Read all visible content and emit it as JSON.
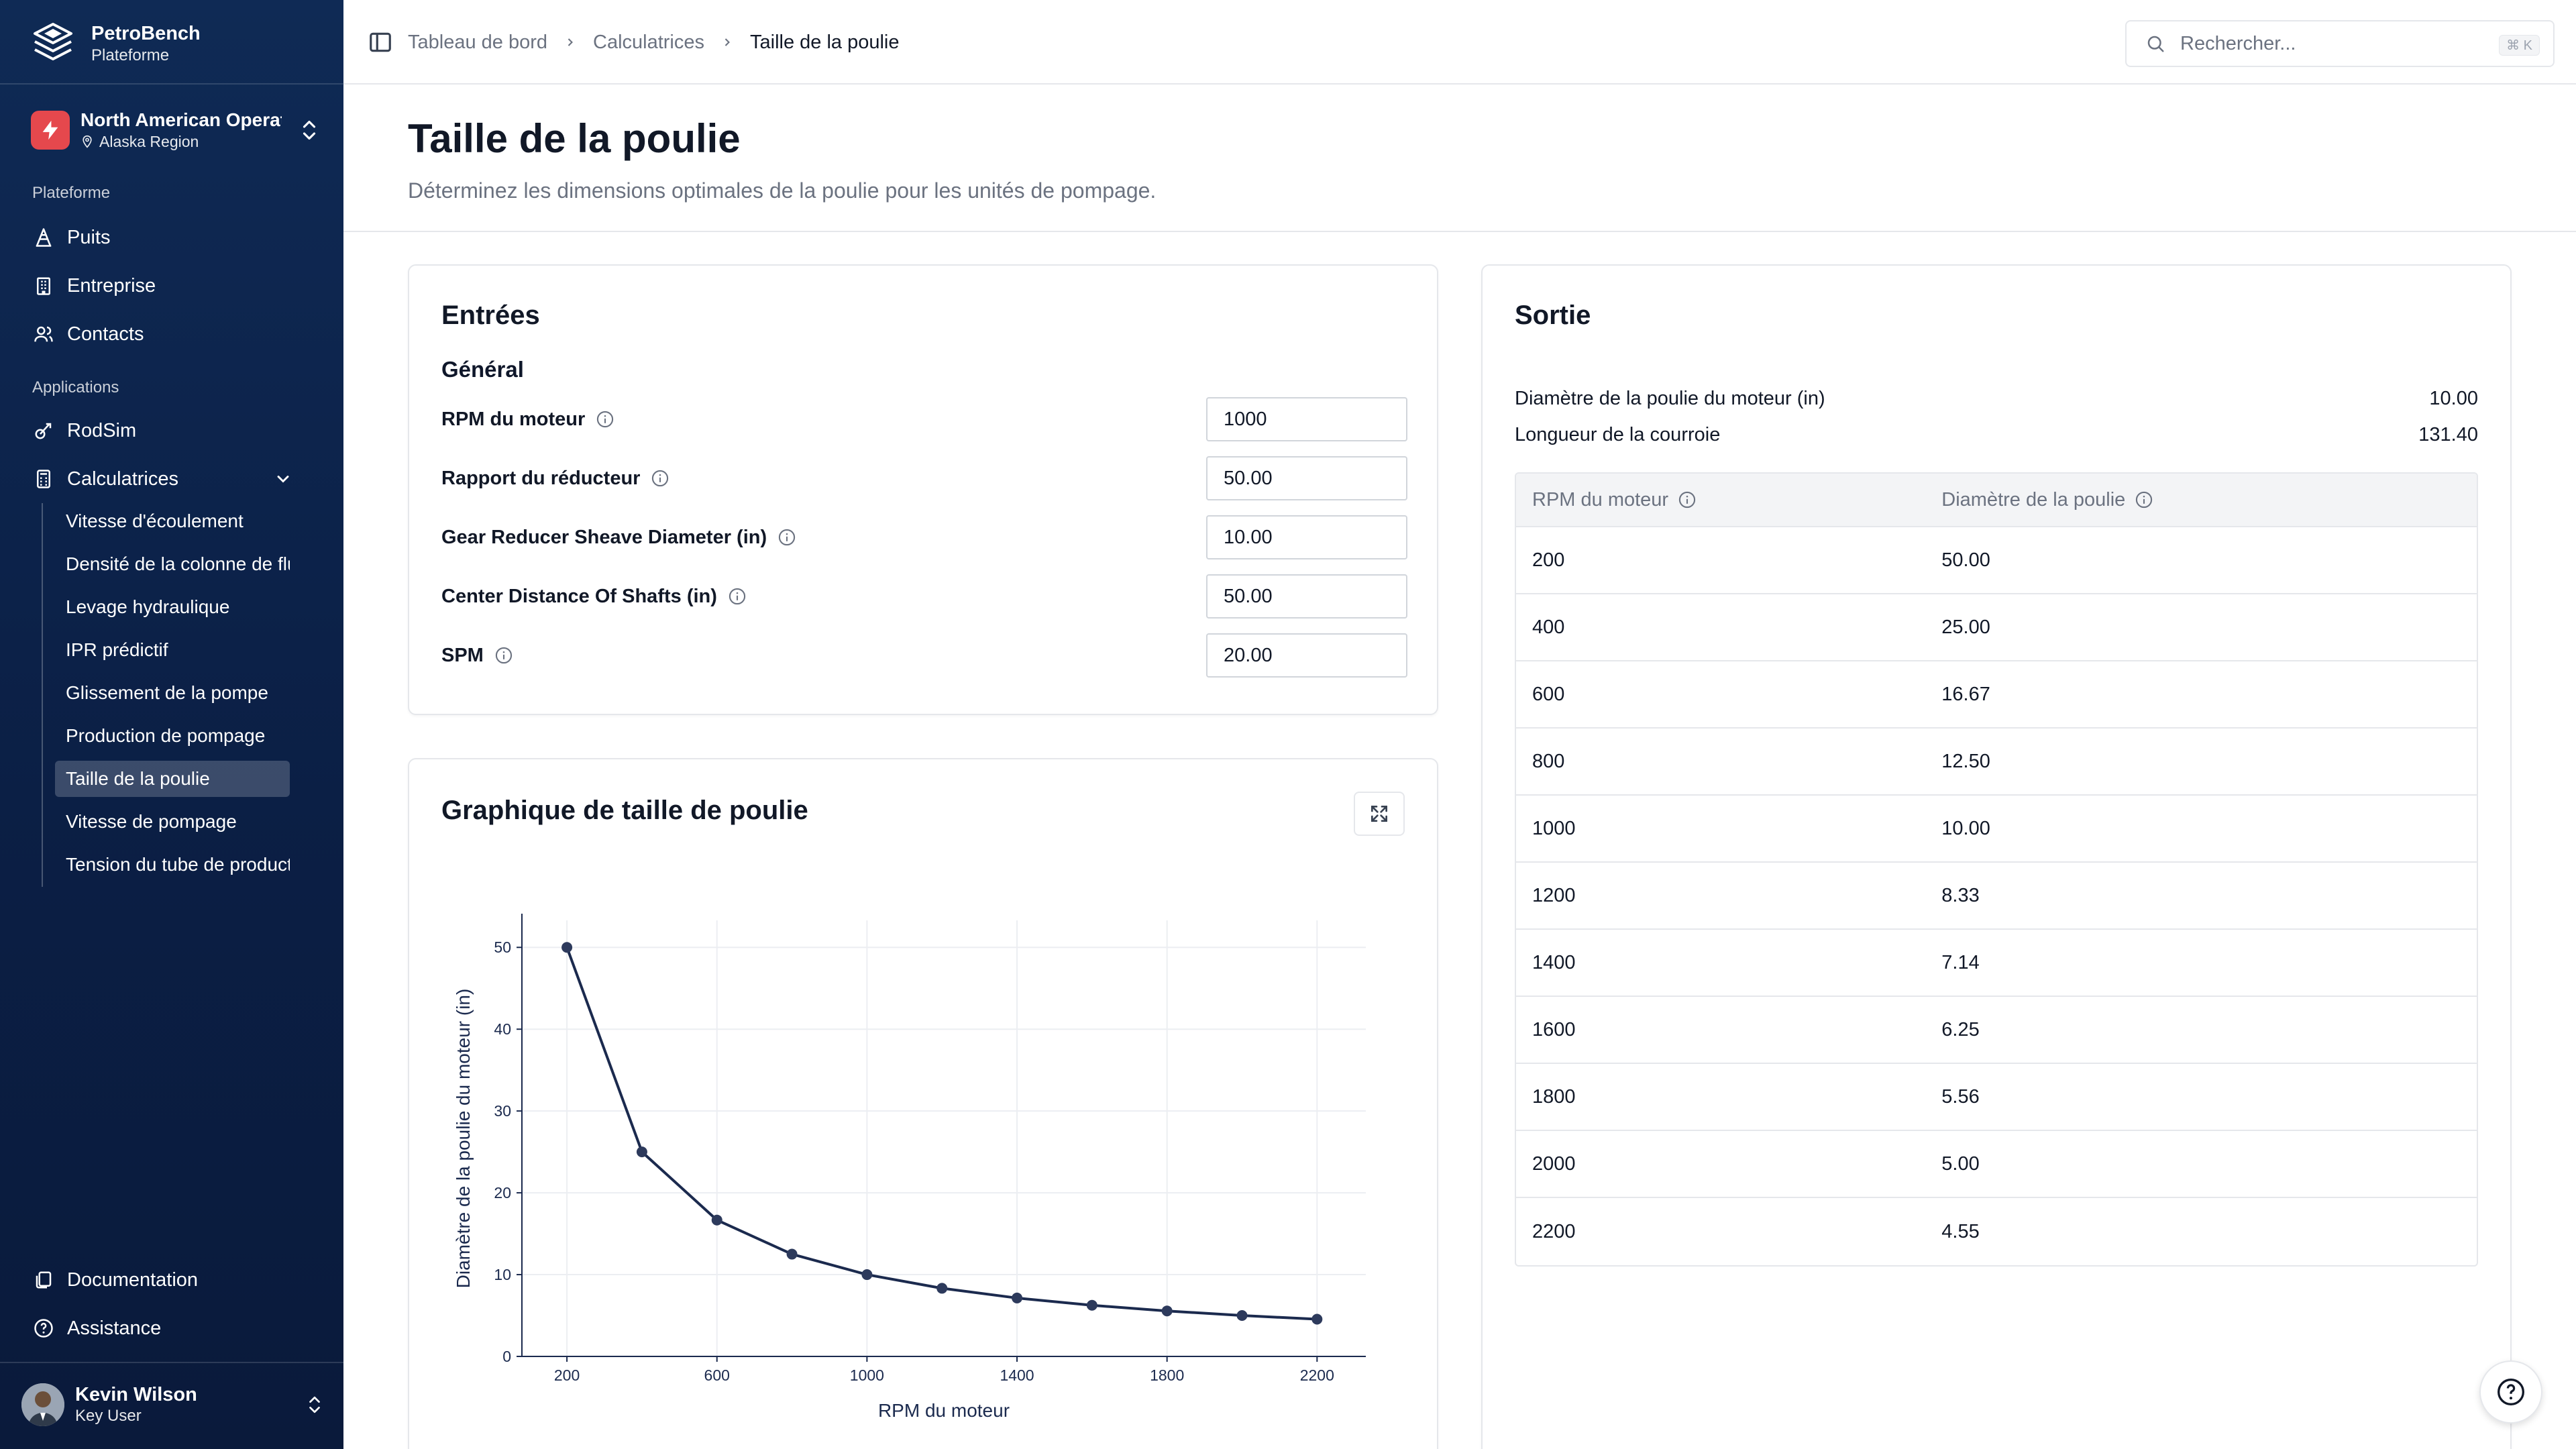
{
  "brand": {
    "name": "PetroBench",
    "subtitle": "Plateforme"
  },
  "org": {
    "name": "North American Operations",
    "region": "Alaska Region"
  },
  "sidebar": {
    "section_platform": "Plateforme",
    "platform_items": [
      {
        "label": "Puits",
        "icon": "oil-rig-icon"
      },
      {
        "label": "Entreprise",
        "icon": "building-icon"
      },
      {
        "label": "Contacts",
        "icon": "users-icon"
      }
    ],
    "section_apps": "Applications",
    "app_items": [
      {
        "label": "RodSim",
        "icon": "rodsim-icon"
      },
      {
        "label": "Calculatrices",
        "icon": "calculator-icon"
      }
    ],
    "calculators": [
      "Vitesse d'écoulement",
      "Densité de la colonne de fluide",
      "Levage hydraulique",
      "IPR prédictif",
      "Glissement de la pompe",
      "Production de pompage",
      "Taille de la poulie",
      "Vitesse de pompage",
      "Tension du tube de production"
    ],
    "active_calculator": "Taille de la poulie",
    "footer_items": [
      {
        "label": "Documentation",
        "icon": "docs-icon"
      },
      {
        "label": "Assistance",
        "icon": "help-circle-icon"
      }
    ],
    "user": {
      "name": "Kevin Wilson",
      "role": "Key User"
    }
  },
  "breadcrumb": [
    "Tableau de bord",
    "Calculatrices",
    "Taille de la poulie"
  ],
  "search": {
    "placeholder": "Rechercher...",
    "shortcut": "⌘ K"
  },
  "page": {
    "title": "Taille de la poulie",
    "subtitle": "Déterminez les dimensions optimales de la poulie pour les unités de pompage."
  },
  "inputs": {
    "title": "Entrées",
    "group": "Général",
    "fields": [
      {
        "label": "RPM du moteur",
        "value": "1000"
      },
      {
        "label": "Rapport du réducteur",
        "value": "50.00"
      },
      {
        "label": "Gear Reducer Sheave Diameter (in)",
        "value": "10.00"
      },
      {
        "label": "Center Distance Of Shafts (in)",
        "value": "50.00"
      },
      {
        "label": "SPM",
        "value": "20.00"
      }
    ]
  },
  "output": {
    "title": "Sortie",
    "summary": [
      {
        "label": "Diamètre de la poulie du moteur (in)",
        "value": "10.00"
      },
      {
        "label": "Longueur de la courroie",
        "value": "131.40"
      }
    ],
    "table": {
      "headers": [
        "RPM du moteur",
        "Diamètre de la poulie"
      ],
      "rows": [
        [
          "200",
          "50.00"
        ],
        [
          "400",
          "25.00"
        ],
        [
          "600",
          "16.67"
        ],
        [
          "800",
          "12.50"
        ],
        [
          "1000",
          "10.00"
        ],
        [
          "1200",
          "8.33"
        ],
        [
          "1400",
          "7.14"
        ],
        [
          "1600",
          "6.25"
        ],
        [
          "1800",
          "5.56"
        ],
        [
          "2000",
          "5.00"
        ],
        [
          "2200",
          "4.55"
        ]
      ]
    }
  },
  "chart_card": {
    "title": "Graphique de taille de poulie"
  },
  "chart_data": {
    "type": "line",
    "title": "",
    "xlabel": "RPM du moteur",
    "ylabel": "Diamètre de la poulie du moteur (in)",
    "x": [
      200,
      400,
      600,
      800,
      1000,
      1200,
      1400,
      1600,
      1800,
      2000,
      2200
    ],
    "series": [
      {
        "values": [
          50.0,
          25.0,
          16.67,
          12.5,
          10.0,
          8.33,
          7.14,
          6.25,
          5.56,
          5.0,
          4.55
        ]
      }
    ],
    "xticks": [
      200,
      600,
      1000,
      1400,
      1800,
      2200
    ],
    "yticks": [
      0,
      10,
      20,
      30,
      40,
      50
    ],
    "xlim": [
      80,
      2330
    ],
    "ylim": [
      0,
      53.3
    ],
    "grid": true,
    "color": "#1b2a4e"
  }
}
